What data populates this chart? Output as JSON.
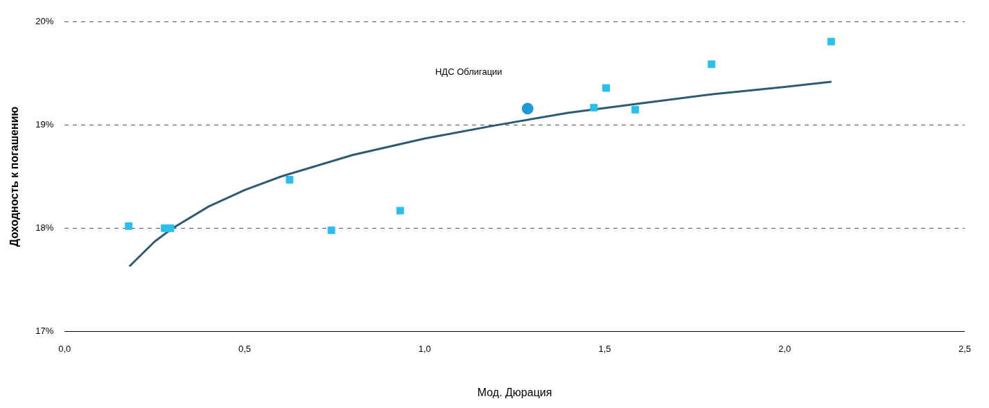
{
  "chart_data": {
    "type": "scatter",
    "xlabel": "Мод. Дюрация",
    "ylabel": "Доходность к погашению",
    "series": [
      {
        "type": "scatter",
        "marker": "square",
        "color": "#29c0f0",
        "x": [
          0.178,
          0.278,
          0.294,
          0.625,
          0.741,
          0.932,
          1.47,
          1.504,
          1.585,
          1.797,
          2.129
        ],
        "values": [
          18.02,
          18.0,
          18.0,
          18.47,
          17.98,
          18.17,
          19.17,
          19.36,
          19.15,
          19.59,
          19.81
        ]
      },
      {
        "type": "scatter",
        "marker": "circle",
        "name": "НДС Облигации",
        "color": "#1a9ad6",
        "x": [
          1.286
        ],
        "values": [
          19.16
        ]
      },
      {
        "type": "line",
        "marker": "none",
        "color": "#2e5a73",
        "x": [
          0.18,
          0.25,
          0.3,
          0.4,
          0.5,
          0.6,
          0.8,
          1.0,
          1.2,
          1.4,
          1.6,
          1.8,
          2.0,
          2.13
        ],
        "values": [
          17.63,
          17.87,
          18.0,
          18.21,
          18.37,
          18.5,
          18.71,
          18.87,
          19.0,
          19.12,
          19.21,
          19.3,
          19.37,
          19.42
        ]
      }
    ],
    "xlim": [
      0,
      2.5
    ],
    "xticks": [
      {
        "value": 0,
        "label": "0,0"
      },
      {
        "value": 0.5,
        "label": "0,5"
      },
      {
        "value": 1,
        "label": "1,0"
      },
      {
        "value": 1.5,
        "label": "1,5"
      },
      {
        "value": 2,
        "label": "2,0"
      },
      {
        "value": 2.5,
        "label": "2,5"
      }
    ],
    "ylim": [
      17,
      20
    ],
    "yticks": [
      {
        "value": 17,
        "label": "17%"
      },
      {
        "value": 18,
        "label": "18%"
      },
      {
        "value": 19,
        "label": "19%"
      },
      {
        "value": 20,
        "label": "20%"
      }
    ],
    "grid": "y",
    "legend": false
  }
}
